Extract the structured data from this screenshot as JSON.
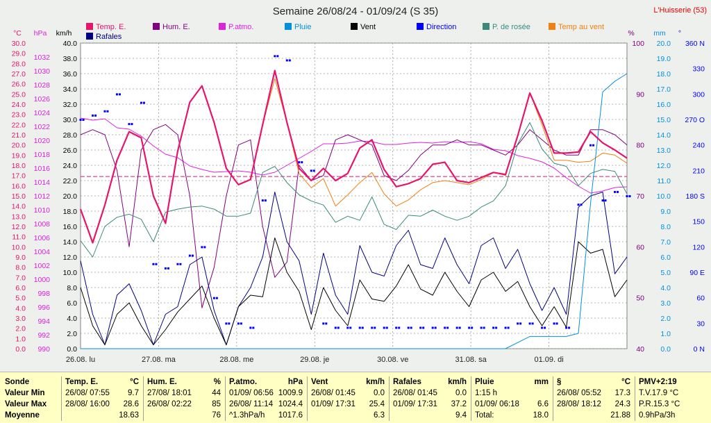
{
  "title": "Semaine 26/08/24 - 01/09/24 (S 35)",
  "station": "L'Huisserie (53)",
  "colors": {
    "temp": "#e8146b",
    "hum": "#800080",
    "patmo": "#e020e0",
    "pluie": "#0090e0",
    "vent": "#000000",
    "direction": "#0000ff",
    "rosee": "#3a8a7a",
    "tempvent": "#f08010",
    "rafales": "#000080",
    "grid": "#9a9a9a",
    "plot_bg": "#ffffff"
  },
  "legend": [
    {
      "label": "Temp. E.",
      "color": "#e8146b"
    },
    {
      "label": "Hum. E.",
      "color": "#800080"
    },
    {
      "label": "P.atmo.",
      "color": "#e020e0"
    },
    {
      "label": "Pluie",
      "color": "#0090e0"
    },
    {
      "label": "Vent",
      "color": "#000000"
    },
    {
      "label": "Direction",
      "color": "#0000ff"
    },
    {
      "label": "P. de rosée",
      "color": "#3a8a7a"
    },
    {
      "label": "Temp au vent",
      "color": "#f08010"
    },
    {
      "label": "Rafales",
      "color": "#000080"
    }
  ],
  "chart_data": {
    "type": "line",
    "x_labels": [
      "26.08. lu",
      "27.08. ma",
      "28.08. me",
      "29.08. je",
      "30.08. ve",
      "31.08. sa",
      "01.09. di"
    ],
    "axes": {
      "temp": {
        "unit": "°C",
        "range": [
          0,
          30
        ],
        "ticks": [
          "0.0",
          "1.0",
          "2.0",
          "3.0",
          "4.0",
          "5.0",
          "6.0",
          "7.0",
          "8.0",
          "9.0",
          "10.0",
          "11.0",
          "12.0",
          "13.0",
          "14.0",
          "15.0",
          "16.0",
          "17.0",
          "18.0",
          "19.0",
          "20.0",
          "21.0",
          "22.0",
          "23.0",
          "24.0",
          "25.0",
          "26.0",
          "27.0",
          "28.0",
          "29.0",
          "30.0"
        ]
      },
      "pressure": {
        "unit": "hPa",
        "range": [
          990,
          1034
        ],
        "ticks": [
          "990",
          "992",
          "994",
          "996",
          "998",
          "1000",
          "1002",
          "1004",
          "1006",
          "1008",
          "1010",
          "1012",
          "1014",
          "1016",
          "1018",
          "1020",
          "1022",
          "1024",
          "1026",
          "1028",
          "1030",
          "1032"
        ]
      },
      "wind": {
        "unit": "km/h",
        "range": [
          0,
          40
        ],
        "ticks": [
          "0.0",
          "2.0",
          "4.0",
          "6.0",
          "8.0",
          "10.0",
          "12.0",
          "14.0",
          "16.0",
          "18.0",
          "20.0",
          "22.0",
          "24.0",
          "26.0",
          "28.0",
          "30.0",
          "32.0",
          "34.0",
          "36.0",
          "38.0",
          "40.0"
        ]
      },
      "humidity": {
        "unit": "%",
        "range": [
          40,
          100
        ],
        "ticks": [
          "40",
          "50",
          "60",
          "70",
          "80",
          "90",
          "100"
        ]
      },
      "rain": {
        "unit": "mm",
        "range": [
          0,
          20
        ],
        "ticks": [
          "0.0",
          "1.0",
          "2.0",
          "3.0",
          "4.0",
          "5.0",
          "6.0",
          "7.0",
          "8.0",
          "9.0",
          "10.0",
          "11.0",
          "12.0",
          "13.0",
          "14.0",
          "15.0",
          "16.0",
          "17.0",
          "18.0",
          "19.0",
          "20.0"
        ]
      },
      "direction": {
        "unit": "°",
        "range": [
          0,
          360
        ],
        "ticks": [
          "0 N",
          "30",
          "60",
          "90 E",
          "120",
          "150",
          "180 S",
          "210",
          "240",
          "270 O",
          "300",
          "330",
          "360 N"
        ]
      }
    },
    "reference_line_temp": 16.9,
    "series": [
      {
        "name": "Temp. E.",
        "axis": "temp",
        "values": [
          13.7,
          10.4,
          14.1,
          18.5,
          21.3,
          20.7,
          15.0,
          12.3,
          19.4,
          24.2,
          25.8,
          22.2,
          17.7,
          16.1,
          16.6,
          22.0,
          27.3,
          22.2,
          17.7,
          16.5,
          17.7,
          16.5,
          17.2,
          19.7,
          20.5,
          17.6,
          15.9,
          16.2,
          16.7,
          18.1,
          18.3,
          16.5,
          16.3,
          16.8,
          17.3,
          17.1,
          20.9,
          25.1,
          22.4,
          19.2,
          19.2,
          19.3,
          21.3,
          20.2,
          19.5,
          18.7
        ]
      },
      {
        "name": "Temp au vent",
        "axis": "temp",
        "values": [
          13.7,
          10.4,
          14.1,
          18.5,
          21.3,
          20.7,
          15.0,
          12.3,
          19.4,
          24.2,
          25.8,
          22.2,
          17.7,
          16.1,
          16.6,
          22.0,
          26.5,
          22.2,
          17.2,
          15.8,
          16.7,
          14.0,
          15.1,
          16.3,
          17.3,
          15.2,
          14.0,
          14.6,
          15.6,
          16.3,
          16.5,
          16.3,
          16.1,
          16.6,
          17.3,
          17.0,
          20.9,
          25.1,
          22.0,
          18.5,
          18.5,
          18.3,
          18.4,
          19.2,
          19.0,
          18.2
        ]
      },
      {
        "name": "P. de rosée",
        "axis": "temp",
        "values": [
          10.6,
          9.0,
          12.0,
          12.9,
          13.2,
          12.7,
          10.5,
          13.4,
          13.7,
          13.9,
          14.0,
          13.7,
          13.0,
          13.0,
          13.3,
          17.3,
          17.9,
          16.3,
          15.1,
          14.5,
          14.1,
          12.4,
          13.0,
          12.6,
          14.9,
          12.2,
          11.7,
          13.1,
          13.0,
          13.6,
          13.0,
          12.6,
          13.0,
          13.9,
          14.5,
          16.0,
          20.1,
          22.2,
          19.6,
          18.2,
          17.9,
          16.0,
          17.2,
          17.6,
          17.4,
          15.2
        ]
      },
      {
        "name": "Hum. E.",
        "axis": "humidity",
        "values": [
          82,
          83,
          82,
          75,
          60,
          79,
          83,
          84,
          82,
          70,
          48,
          56,
          70,
          80,
          81,
          64,
          54,
          57,
          76,
          73,
          74,
          81,
          82,
          81,
          80,
          74,
          73,
          75,
          78,
          80,
          80,
          81,
          80,
          80,
          79,
          78,
          80,
          83,
          81,
          79,
          78,
          78,
          83,
          83,
          82,
          80
        ]
      },
      {
        "name": "P.atmo.",
        "axis": "pressure",
        "values": [
          1023.2,
          1022.9,
          1023.1,
          1021.8,
          1021.6,
          1020.6,
          1019.2,
          1018.0,
          1017.5,
          1016.3,
          1015.8,
          1015.4,
          1015.5,
          1015.6,
          1015.4,
          1015.0,
          1015.4,
          1016.4,
          1017.4,
          1018.4,
          1019.5,
          1019.5,
          1019.6,
          1019.9,
          1019.8,
          1019.4,
          1019.4,
          1019.6,
          1019.7,
          1019.6,
          1019.8,
          1019.7,
          1019.8,
          1019.5,
          1018.7,
          1018.5,
          1017.8,
          1017.4,
          1016.9,
          1016.0,
          1014.6,
          1013.4,
          1012.4,
          1012.7,
          1013.2,
          1013.3
        ]
      },
      {
        "name": "Vent",
        "axis": "wind",
        "values": [
          8.0,
          3.0,
          0.5,
          4.5,
          6.0,
          3.0,
          0.5,
          2.5,
          4.8,
          6.5,
          8.2,
          4.0,
          0.5,
          5.5,
          7.0,
          6.8,
          14.5,
          10.0,
          7.5,
          2.5,
          8.0,
          5.0,
          3.0,
          9.0,
          6.5,
          6.2,
          8.2,
          11.0,
          7.8,
          7.0,
          10.0,
          7.5,
          5.5,
          9.0,
          10.0,
          7.5,
          8.8,
          5.5,
          3.0,
          5.5,
          2.8,
          14.0,
          12.5,
          13.0,
          6.8,
          9.0
        ]
      },
      {
        "name": "Rafales",
        "axis": "wind",
        "values": [
          11.5,
          4.5,
          0.5,
          7.0,
          8.5,
          5.0,
          0.5,
          4.5,
          5.5,
          11.0,
          12.0,
          5.0,
          0.5,
          5.5,
          8.0,
          12.0,
          20.5,
          14.0,
          11.5,
          4.5,
          12.5,
          7.0,
          4.5,
          13.5,
          10.0,
          9.5,
          13.5,
          15.5,
          11.0,
          10.5,
          14.5,
          11.0,
          8.5,
          13.5,
          14.5,
          10.5,
          13.0,
          8.5,
          5.0,
          8.0,
          4.5,
          18.5,
          20.0,
          20.5,
          9.8,
          12.0
        ]
      },
      {
        "name": "Pluie",
        "axis": "rain",
        "values": [
          0,
          0,
          0,
          0,
          0,
          0,
          0,
          0,
          0,
          0,
          0,
          0,
          0,
          0,
          0,
          0,
          0,
          0,
          0,
          0,
          0,
          0,
          0,
          0,
          0,
          0,
          0,
          0,
          0,
          0,
          0,
          0,
          0,
          0,
          0,
          0,
          0.4,
          0.8,
          0.8,
          0.8,
          0.8,
          1.0,
          9.5,
          16.8,
          17.5,
          18.0
        ]
      },
      {
        "name": "Direction",
        "axis": "direction",
        "values": [
          270,
          275,
          280,
          300,
          265,
          290,
          100,
          95,
          100,
          110,
          120,
          60,
          30,
          30,
          25,
          175,
          345,
          340,
          220,
          210,
          30,
          25,
          25,
          25,
          25,
          25,
          25,
          25,
          25,
          25,
          25,
          25,
          25,
          25,
          25,
          25,
          30,
          30,
          25,
          30,
          25,
          170,
          240,
          175,
          185,
          180
        ]
      }
    ]
  },
  "stats": {
    "sonde": {
      "h": "Sonde",
      "min": "Valeur Min",
      "max": "Valeur Max",
      "moy": "Moyenne"
    },
    "temp": {
      "h": "Temp. E.",
      "u": "°C",
      "min_d": "26/08/ 07:55",
      "min_v": "9.7",
      "max_d": "28/08/ 16:00",
      "max_v": "28.6",
      "moy": "18.63"
    },
    "hum": {
      "h": "Hum. E.",
      "u": "%",
      "min_d": "27/08/ 18:01",
      "min_v": "44",
      "max_d": "26/08/ 02:22",
      "max_v": "85",
      "moy": "76"
    },
    "patmo": {
      "h": "P.atmo.",
      "u": "hPa",
      "min_d": "01/09/ 06:56",
      "min_v": "1009.9",
      "max_d": "26/08/ 11:14",
      "max_v": "1024.4",
      "trend": "^1.3hPa/h",
      "moy": "1017.6"
    },
    "vent": {
      "h": "Vent",
      "u": "km/h",
      "min_d": "26/08/ 01:45",
      "min_v": "0.0",
      "max_d": "01/09/ 17:31",
      "max_v": "25.4",
      "moy": "6.3"
    },
    "raf": {
      "h": "Rafales",
      "u": "km/h",
      "min_d": "26/08/ 01:45",
      "min_v": "0.0",
      "max_d": "01/09/ 17:31",
      "max_v": "37.2",
      "moy": "9.4"
    },
    "pluie": {
      "h": "Pluie",
      "u": "mm",
      "min_d": "1:15 h",
      "max_d": "01/09/ 06:18",
      "max_v": "6.6",
      "tot_l": "Total:",
      "tot_v": "18.0"
    },
    "rosee": {
      "h": "§",
      "u": "°C",
      "min_d": "26/08/ 05:52",
      "min_v": "17.3",
      "max_d": "28/08/ 18:12",
      "max_v": "24.3",
      "moy": "21.88"
    },
    "pmv": {
      "h": "PMV+2:19",
      "l1": "T.V.17.9 °C",
      "l2": "P.R.15.3 °C",
      "l3": "0.9hPa/3h"
    }
  }
}
